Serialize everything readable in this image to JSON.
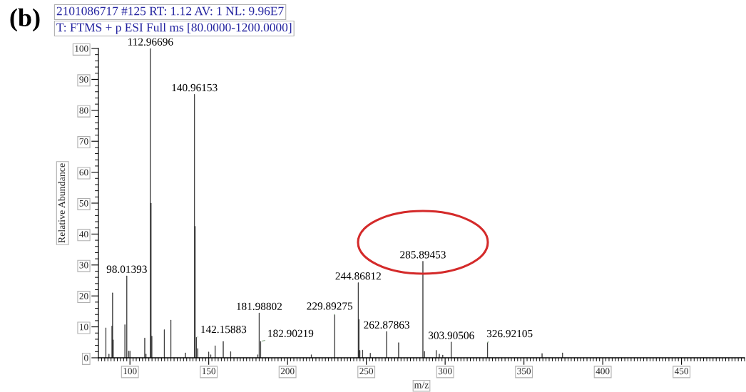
{
  "chart_data": {
    "type": "bar",
    "title": "2101086717 #125 RT: 1.12 AV: 1 NL: 9.96E7",
    "subtitle": "T: FTMS + p ESI Full ms [80.0000-1200.0000]",
    "xlabel": "m/z",
    "ylabel": "Relative Abundance",
    "x": [
      84.7,
      86.7,
      88.6,
      89.0,
      89.4,
      96.8,
      98.01393,
      99.2,
      100.0,
      109.4,
      110.2,
      112.96696,
      113.4,
      113.9,
      121.8,
      126.0,
      135.2,
      140.96153,
      141.4,
      142.15883,
      143.0,
      150.0,
      151.3,
      154.1,
      159.2,
      163.9,
      181.1,
      181.98802,
      182.90219,
      215.1,
      229.89275,
      244.86812,
      245.3,
      245.9,
      247.6,
      252.5,
      262.87863,
      270.5,
      285.89453,
      286.9,
      294.4,
      296.3,
      298.5,
      303.90506,
      326.92105,
      361.5,
      374.5
    ],
    "values": [
      9.7,
      1.2,
      10.3,
      21.0,
      5.8,
      10.7,
      26.5,
      2.2,
      2.2,
      6.4,
      1.2,
      100,
      50.0,
      7.0,
      9.1,
      12.2,
      1.6,
      85.2,
      42.5,
      6.6,
      3.0,
      1.9,
      1.0,
      3.9,
      5.3,
      2.0,
      1.0,
      14.5,
      5.3,
      1.0,
      13.9,
      24.3,
      12.4,
      2.4,
      2.5,
      1.5,
      8.5,
      4.9,
      31.2,
      2.1,
      2.4,
      1.2,
      0.9,
      5.1,
      5.0,
      1.4,
      1.6
    ],
    "color": "#1a1a1a",
    "xlim": [
      80,
      490
    ],
    "ylim": [
      0,
      100
    ],
    "xticks": [
      100,
      150,
      200,
      250,
      300,
      350,
      400,
      450
    ],
    "yticks": [
      0,
      10,
      20,
      30,
      40,
      50,
      60,
      70,
      80,
      90,
      100
    ],
    "annotations": [
      "(b)",
      {
        "text": "98.01393",
        "x": 98.01393,
        "y": 26.5
      },
      {
        "text": "112.96696",
        "x": 112.96696,
        "y": 100
      },
      {
        "text": "140.96153",
        "x": 140.96153,
        "y": 85.2
      },
      {
        "text": "142.15883",
        "x": 142.15883,
        "y": 6.6
      },
      {
        "text": "181.98802",
        "x": 181.98802,
        "y": 14.5
      },
      {
        "text": "182.90219",
        "x": 182.90219,
        "y": 5.3
      },
      {
        "text": "229.89275",
        "x": 229.89275,
        "y": 13.9
      },
      {
        "text": "244.86812",
        "x": 244.86812,
        "y": 24.3
      },
      {
        "text": "262.87863",
        "x": 262.87863,
        "y": 8.5
      },
      {
        "text": "285.89453",
        "x": 285.89453,
        "y": 31.2
      },
      {
        "text": "303.90506",
        "x": 303.90506,
        "y": 5.1
      },
      {
        "text": "326.92105",
        "x": 326.92105,
        "y": 5.0
      }
    ]
  }
}
